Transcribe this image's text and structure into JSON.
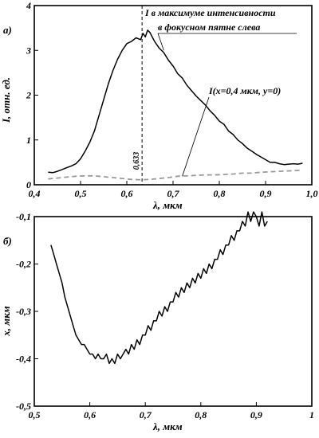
{
  "chart_data": [
    {
      "type": "line",
      "panel_label": "а)",
      "xlabel": "λ, мкм",
      "ylabel": "I, отн. ед.",
      "xlim": [
        0.4,
        1.0
      ],
      "ylim": [
        0,
        4
      ],
      "x_ticks": [
        0.4,
        0.5,
        0.6,
        0.7,
        0.8,
        0.9,
        1.0
      ],
      "x_tick_labels": [
        "0,4",
        "0,5",
        "0,6",
        "0,7",
        "0,8",
        "0,9",
        "1,0"
      ],
      "y_ticks": [
        0,
        1,
        2,
        3,
        4
      ],
      "y_tick_labels": [
        "0",
        "1",
        "2",
        "3",
        "4"
      ],
      "grid": false,
      "vline": {
        "x": 0.633,
        "label": "0,633",
        "style": "dashed"
      },
      "annotations": [
        {
          "text": "I в максимуме интенсивности",
          "line": 1
        },
        {
          "text": "в фокусном пятне слева",
          "line": 2
        },
        {
          "text": "I(x=0,4 мкм, y=0)",
          "line": 3
        }
      ],
      "series": [
        {
          "style": "solid",
          "color": "#000000",
          "x": [
            0.43,
            0.44,
            0.45,
            0.46,
            0.47,
            0.48,
            0.49,
            0.5,
            0.51,
            0.52,
            0.53,
            0.54,
            0.55,
            0.56,
            0.57,
            0.58,
            0.59,
            0.6,
            0.61,
            0.62,
            0.63,
            0.635,
            0.64,
            0.645,
            0.65,
            0.66,
            0.67,
            0.68,
            0.69,
            0.7,
            0.71,
            0.72,
            0.73,
            0.74,
            0.75,
            0.76,
            0.77,
            0.78,
            0.79,
            0.8,
            0.81,
            0.82,
            0.83,
            0.84,
            0.85,
            0.86,
            0.87,
            0.88,
            0.89,
            0.9,
            0.91,
            0.92,
            0.93,
            0.94,
            0.95,
            0.96,
            0.97,
            0.98
          ],
          "y": [
            0.28,
            0.27,
            0.3,
            0.34,
            0.38,
            0.42,
            0.47,
            0.58,
            0.75,
            0.95,
            1.2,
            1.55,
            1.9,
            2.25,
            2.55,
            2.8,
            3.0,
            3.15,
            3.2,
            3.28,
            3.24,
            3.38,
            3.3,
            3.45,
            3.4,
            3.2,
            3.05,
            2.95,
            2.78,
            2.65,
            2.48,
            2.38,
            2.22,
            2.1,
            1.98,
            1.88,
            1.78,
            1.65,
            1.55,
            1.42,
            1.35,
            1.2,
            1.12,
            1.0,
            0.92,
            0.82,
            0.75,
            0.68,
            0.62,
            0.56,
            0.5,
            0.5,
            0.47,
            0.45,
            0.46,
            0.47,
            0.46,
            0.48
          ]
        },
        {
          "style": "dashed",
          "color": "#9a9a9a",
          "x": [
            0.43,
            0.45,
            0.47,
            0.49,
            0.51,
            0.53,
            0.55,
            0.57,
            0.59,
            0.61,
            0.63,
            0.65,
            0.67,
            0.69,
            0.71,
            0.73,
            0.75,
            0.77,
            0.79,
            0.81,
            0.83,
            0.85,
            0.87,
            0.89,
            0.91,
            0.93,
            0.95,
            0.97,
            0.98
          ],
          "y": [
            0.13,
            0.15,
            0.17,
            0.19,
            0.2,
            0.2,
            0.18,
            0.16,
            0.14,
            0.12,
            0.11,
            0.12,
            0.14,
            0.16,
            0.19,
            0.2,
            0.21,
            0.22,
            0.22,
            0.23,
            0.24,
            0.26,
            0.26,
            0.28,
            0.29,
            0.3,
            0.31,
            0.32,
            0.33
          ]
        }
      ]
    },
    {
      "type": "line",
      "panel_label": "б)",
      "xlabel": "λ, мкм",
      "ylabel": "x, мкм",
      "xlim": [
        0.5,
        1.0
      ],
      "ylim": [
        -0.5,
        -0.1
      ],
      "x_ticks": [
        0.5,
        0.6,
        0.7,
        0.8,
        0.9,
        1.0
      ],
      "x_tick_labels": [
        "0,5",
        "0,6",
        "0,7",
        "0,8",
        "0,9",
        "1"
      ],
      "y_ticks": [
        -0.5,
        -0.4,
        -0.3,
        -0.2,
        -0.1
      ],
      "y_tick_labels": [
        "-0,5",
        "-0,4",
        "-0,3",
        "-0,2",
        "-0,1"
      ],
      "grid": false,
      "series": [
        {
          "style": "solid",
          "color": "#000000",
          "x": [
            0.53,
            0.535,
            0.54,
            0.545,
            0.55,
            0.555,
            0.56,
            0.565,
            0.57,
            0.575,
            0.58,
            0.585,
            0.59,
            0.595,
            0.6,
            0.605,
            0.61,
            0.615,
            0.62,
            0.625,
            0.63,
            0.635,
            0.64,
            0.645,
            0.65,
            0.655,
            0.66,
            0.665,
            0.67,
            0.675,
            0.68,
            0.685,
            0.69,
            0.695,
            0.7,
            0.705,
            0.71,
            0.715,
            0.72,
            0.725,
            0.73,
            0.735,
            0.74,
            0.745,
            0.75,
            0.755,
            0.76,
            0.765,
            0.77,
            0.775,
            0.78,
            0.785,
            0.79,
            0.795,
            0.8,
            0.805,
            0.81,
            0.815,
            0.82,
            0.825,
            0.83,
            0.835,
            0.84,
            0.845,
            0.85,
            0.855,
            0.86,
            0.865,
            0.87,
            0.875,
            0.88,
            0.885,
            0.89,
            0.895,
            0.9,
            0.905,
            0.91,
            0.915,
            0.92
          ],
          "y": [
            -0.16,
            -0.18,
            -0.2,
            -0.22,
            -0.24,
            -0.27,
            -0.29,
            -0.31,
            -0.33,
            -0.35,
            -0.36,
            -0.37,
            -0.37,
            -0.38,
            -0.39,
            -0.39,
            -0.4,
            -0.39,
            -0.4,
            -0.4,
            -0.39,
            -0.41,
            -0.4,
            -0.41,
            -0.39,
            -0.4,
            -0.39,
            -0.38,
            -0.39,
            -0.37,
            -0.38,
            -0.36,
            -0.37,
            -0.35,
            -0.35,
            -0.33,
            -0.34,
            -0.32,
            -0.32,
            -0.3,
            -0.31,
            -0.29,
            -0.3,
            -0.28,
            -0.28,
            -0.26,
            -0.27,
            -0.25,
            -0.26,
            -0.24,
            -0.25,
            -0.23,
            -0.24,
            -0.22,
            -0.23,
            -0.21,
            -0.22,
            -0.2,
            -0.21,
            -0.19,
            -0.19,
            -0.17,
            -0.18,
            -0.16,
            -0.16,
            -0.14,
            -0.15,
            -0.13,
            -0.13,
            -0.11,
            -0.12,
            -0.09,
            -0.11,
            -0.09,
            -0.1,
            -0.12,
            -0.09,
            -0.12,
            -0.11
          ]
        }
      ]
    }
  ]
}
